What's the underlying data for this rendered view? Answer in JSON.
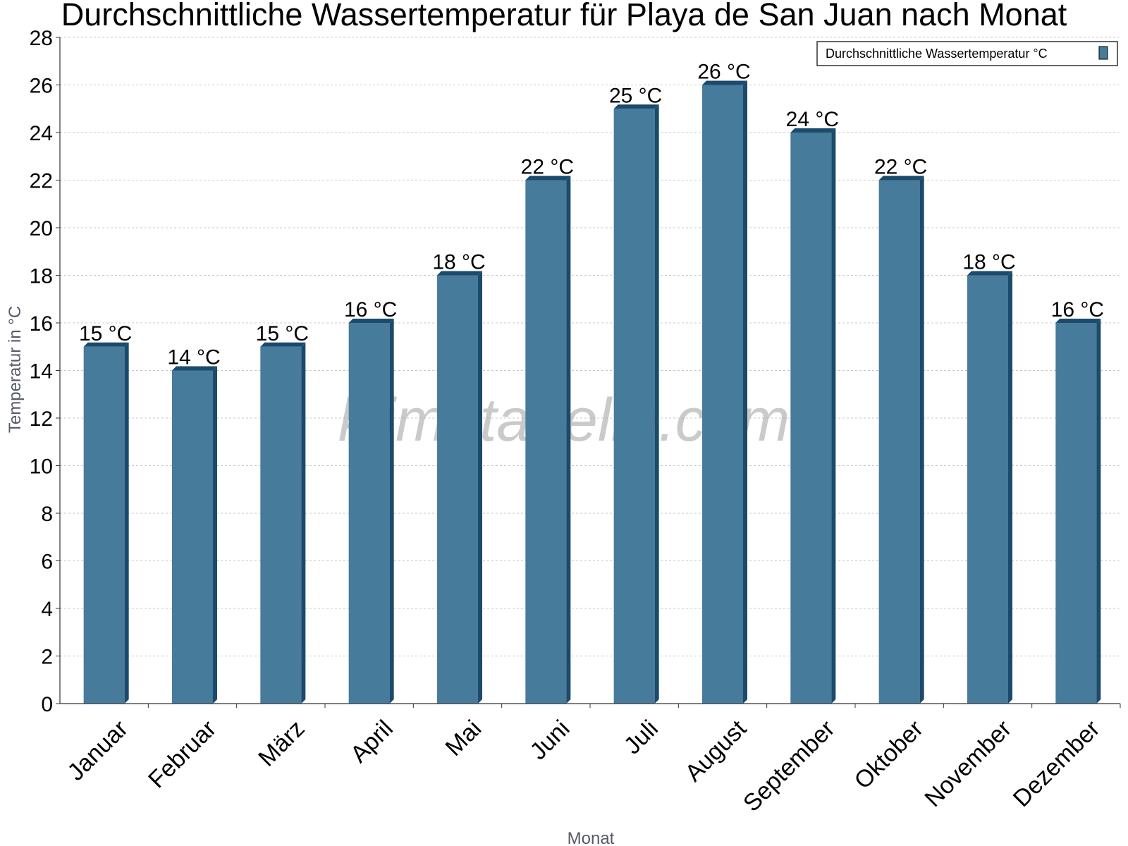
{
  "colors": {
    "bar_front": "#467b9c",
    "bar_side": "#1b4a6b",
    "bar_top": "#1b4a6b",
    "grid": "#c8c8c8",
    "axis": "#333333"
  },
  "watermark": "klimatabelle.com",
  "chart_data": {
    "type": "bar",
    "title": "Durchschnittliche Wassertemperatur für Playa de San Juan nach Monat",
    "xlabel": "Monat",
    "ylabel": "Temperatur in °C",
    "categories": [
      "Januar",
      "Februar",
      "März",
      "April",
      "Mai",
      "Juni",
      "Juli",
      "August",
      "September",
      "Oktober",
      "November",
      "Dezember"
    ],
    "series": [
      {
        "name": "Durchschnittliche Wassertemperatur °C",
        "values": [
          15,
          14,
          15,
          16,
          18,
          22,
          25,
          26,
          24,
          22,
          18,
          16
        ],
        "labels": [
          "15 °C",
          "14 °C",
          "15 °C",
          "16 °C",
          "18 °C",
          "22 °C",
          "25 °C",
          "26 °C",
          "24 °C",
          "22 °C",
          "18 °C",
          "16 °C"
        ]
      }
    ],
    "ylim": [
      0,
      28
    ],
    "yticks": [
      0,
      2,
      4,
      6,
      8,
      10,
      12,
      14,
      16,
      18,
      20,
      22,
      24,
      26,
      28
    ],
    "grid": true,
    "legend_position": "top-right"
  }
}
